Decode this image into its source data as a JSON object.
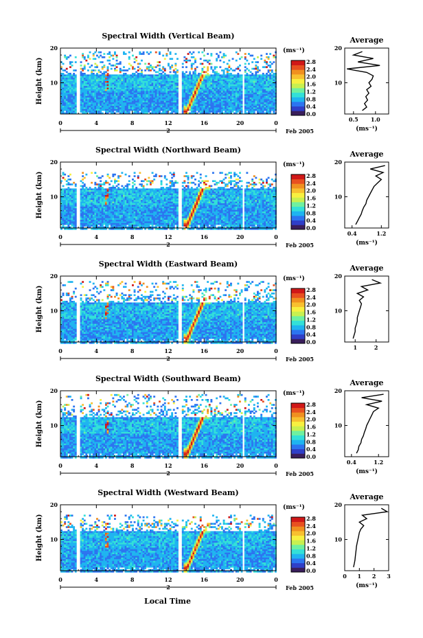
{
  "x_label": "Local Time",
  "unit_label": "(ms⁻¹)",
  "date_label": "Feb 2005",
  "day_label": "2",
  "colorbar_ticks": [
    "0.0",
    "0.4",
    "0.8",
    "1.2",
    "1.6",
    "2.0",
    "2.4",
    "2.8"
  ],
  "colormap": [
    "#3a1e5c",
    "#2f3fc8",
    "#2c74f0",
    "#1fb4f0",
    "#33e0d8",
    "#6ff0a0",
    "#c8f050",
    "#f8f040",
    "#f8c030",
    "#f09020",
    "#e85020",
    "#d01818"
  ],
  "chart_data": [
    {
      "type": "heatmap",
      "title": "Spectral Width (Vertical Beam)",
      "xlabel": "",
      "ylabel": "Height (km)",
      "x_ticks": [
        "0",
        "4",
        "8",
        "12",
        "16",
        "20",
        "0"
      ],
      "y_ticks": [
        "20",
        "10"
      ],
      "xlim": [
        0,
        24
      ],
      "ylim": [
        1,
        20
      ],
      "colorbar_range": [
        0,
        3.0
      ],
      "data_gaps_hours": [
        [
          1.7,
          2.0
        ],
        [
          13.0,
          13.4
        ],
        [
          20.1,
          20.4
        ]
      ],
      "max_height_km": 19.5,
      "convective_event": {
        "start_hour": 14,
        "end_hour": 16,
        "peak_width": 2.8
      },
      "profile": {
        "title": "Average",
        "xlabel": "(ms⁻¹)",
        "x_ticks": [
          "0.5",
          "1.0"
        ],
        "xlim": [
          0.3,
          1.3
        ],
        "y_ticks": [
          "20",
          "10"
        ],
        "height_km": [
          2,
          3,
          4,
          5,
          6,
          7,
          8,
          9,
          10,
          11,
          12,
          13,
          14,
          15,
          16,
          17,
          18,
          19
        ],
        "width": [
          0.7,
          0.8,
          0.75,
          0.82,
          0.78,
          0.85,
          0.8,
          0.9,
          0.85,
          0.92,
          0.95,
          0.8,
          0.35,
          1.1,
          0.6,
          0.95,
          0.5,
          0.7
        ]
      }
    },
    {
      "type": "heatmap",
      "title": "Spectral Width (Northward Beam)",
      "xlabel": "",
      "ylabel": "Height (km)",
      "x_ticks": [
        "0",
        "4",
        "8",
        "12",
        "16",
        "20",
        "0"
      ],
      "y_ticks": [
        "20",
        "10"
      ],
      "xlim": [
        0,
        24
      ],
      "ylim": [
        1,
        20
      ],
      "colorbar_range": [
        0,
        3.0
      ],
      "data_gaps_hours": [
        [
          1.7,
          2.0
        ],
        [
          13.0,
          13.4
        ],
        [
          20.1,
          20.4
        ]
      ],
      "max_height_km": 17.5,
      "convective_event": {
        "start_hour": 14,
        "end_hour": 16,
        "peak_width": 3.0
      },
      "profile": {
        "title": "Average",
        "xlabel": "(ms⁻¹)",
        "x_ticks": [
          "0.4",
          "1.2"
        ],
        "xlim": [
          0.2,
          1.4
        ],
        "y_ticks": [
          "20",
          "10"
        ],
        "height_km": [
          2,
          3,
          4,
          5,
          6,
          7,
          8,
          9,
          10,
          11,
          12,
          13,
          14,
          15,
          16,
          17,
          18,
          19
        ],
        "width": [
          0.5,
          0.55,
          0.6,
          0.65,
          0.68,
          0.72,
          0.78,
          0.8,
          0.85,
          0.9,
          0.95,
          1.0,
          1.1,
          1.2,
          1.05,
          1.25,
          0.9,
          1.3
        ]
      }
    },
    {
      "type": "heatmap",
      "title": "Spectral Width (Eastward Beam)",
      "xlabel": "",
      "ylabel": "Height (km)",
      "x_ticks": [
        "0",
        "4",
        "8",
        "12",
        "16",
        "20",
        "0"
      ],
      "y_ticks": [
        "20",
        "10"
      ],
      "xlim": [
        0,
        24
      ],
      "ylim": [
        1,
        20
      ],
      "colorbar_range": [
        0,
        3.0
      ],
      "data_gaps_hours": [
        [
          1.7,
          2.0
        ],
        [
          13.0,
          13.4
        ],
        [
          20.1,
          20.4
        ]
      ],
      "max_height_km": 19.0,
      "convective_event": {
        "start_hour": 14,
        "end_hour": 16,
        "peak_width": 2.9
      },
      "profile": {
        "title": "Average",
        "xlabel": "",
        "x_ticks": [
          "1",
          "2"
        ],
        "xlim": [
          0.5,
          2.6
        ],
        "y_ticks": [
          "20",
          "10"
        ],
        "height_km": [
          2,
          3,
          4,
          5,
          6,
          7,
          8,
          9,
          10,
          11,
          12,
          13,
          14,
          15,
          16,
          17,
          18,
          19
        ],
        "width": [
          0.9,
          0.95,
          1.0,
          1.0,
          1.05,
          1.1,
          1.1,
          1.15,
          1.2,
          1.25,
          1.3,
          1.2,
          1.4,
          1.1,
          1.6,
          1.3,
          2.2,
          1.8
        ]
      }
    },
    {
      "type": "heatmap",
      "title": "Spectral Width (Southward Beam)",
      "xlabel": "",
      "ylabel": "Height (km)",
      "x_ticks": [
        "0",
        "4",
        "8",
        "12",
        "16",
        "20",
        "0"
      ],
      "y_ticks": [
        "20",
        "10"
      ],
      "xlim": [
        0,
        24
      ],
      "ylim": [
        1,
        20
      ],
      "colorbar_range": [
        0,
        3.0
      ],
      "data_gaps_hours": [
        [
          1.7,
          2.0
        ],
        [
          13.0,
          13.4
        ],
        [
          20.1,
          20.4
        ]
      ],
      "max_height_km": 19.5,
      "convective_event": {
        "start_hour": 14,
        "end_hour": 16,
        "peak_width": 3.0
      },
      "profile": {
        "title": "Average",
        "xlabel": "(ms⁻¹)",
        "x_ticks": [
          "0.4",
          "1.2"
        ],
        "xlim": [
          0.2,
          1.5
        ],
        "y_ticks": [
          "20",
          "10"
        ],
        "height_km": [
          2,
          3,
          4,
          5,
          6,
          7,
          8,
          9,
          10,
          11,
          12,
          13,
          14,
          15,
          16,
          17,
          18,
          19
        ],
        "width": [
          0.55,
          0.6,
          0.62,
          0.68,
          0.7,
          0.75,
          0.78,
          0.82,
          0.85,
          0.9,
          0.95,
          1.0,
          1.05,
          1.2,
          0.85,
          1.3,
          0.7,
          1.35
        ]
      }
    },
    {
      "type": "heatmap",
      "title": "Spectral Width (Westward Beam)",
      "xlabel": "Local Time",
      "ylabel": "Height (km)",
      "x_ticks": [
        "0",
        "4",
        "8",
        "12",
        "16",
        "20",
        "0"
      ],
      "y_ticks": [
        "20",
        "10"
      ],
      "xlim": [
        0,
        24
      ],
      "ylim": [
        1,
        20
      ],
      "colorbar_range": [
        0,
        3.0
      ],
      "data_gaps_hours": [
        [
          1.7,
          2.0
        ],
        [
          13.0,
          13.4
        ],
        [
          20.1,
          20.4
        ]
      ],
      "max_height_km": 17.5,
      "convective_event": {
        "start_hour": 14,
        "end_hour": 16,
        "peak_width": 2.8
      },
      "profile": {
        "title": "Average",
        "xlabel": "(ms⁻¹)",
        "x_ticks": [
          "0",
          "1",
          "2",
          "3"
        ],
        "xlim": [
          0,
          3
        ],
        "y_ticks": [
          "20",
          "10"
        ],
        "height_km": [
          2,
          3,
          4,
          5,
          6,
          7,
          8,
          9,
          10,
          11,
          12,
          13,
          14,
          15,
          16,
          17,
          18,
          19
        ],
        "width": [
          0.6,
          0.65,
          0.7,
          0.72,
          0.75,
          0.78,
          0.8,
          0.85,
          0.9,
          0.95,
          1.0,
          1.1,
          1.3,
          1.0,
          1.5,
          1.2,
          2.9,
          2.5
        ]
      }
    }
  ]
}
